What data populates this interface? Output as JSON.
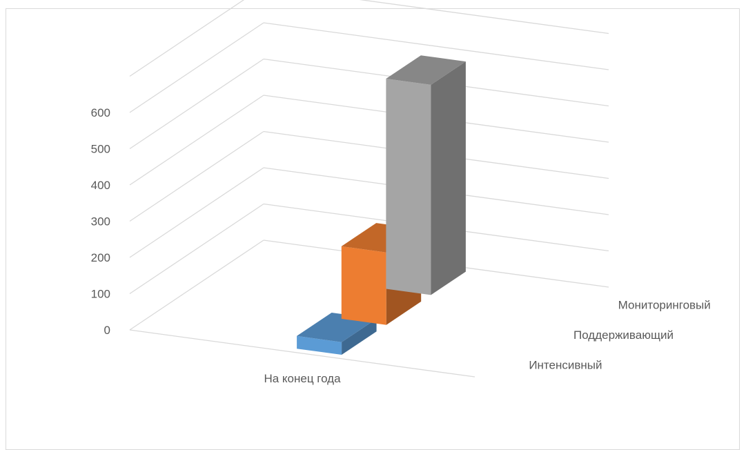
{
  "chart_data": {
    "type": "bar",
    "style": "3d-column",
    "categories": [
      "На конец года"
    ],
    "series": [
      {
        "name": "Интенсивный",
        "values": [
          35
        ],
        "color": "#5b9bd5"
      },
      {
        "name": "Поддерживающий",
        "values": [
          200
        ],
        "color": "#ed7d31"
      },
      {
        "name": "Мониторинговый",
        "values": [
          580
        ],
        "color": "#a5a5a5"
      }
    ],
    "ylim": [
      0,
      700
    ],
    "yticks": [
      "0",
      "100",
      "200",
      "300",
      "400",
      "500",
      "600"
    ],
    "grid": true
  }
}
